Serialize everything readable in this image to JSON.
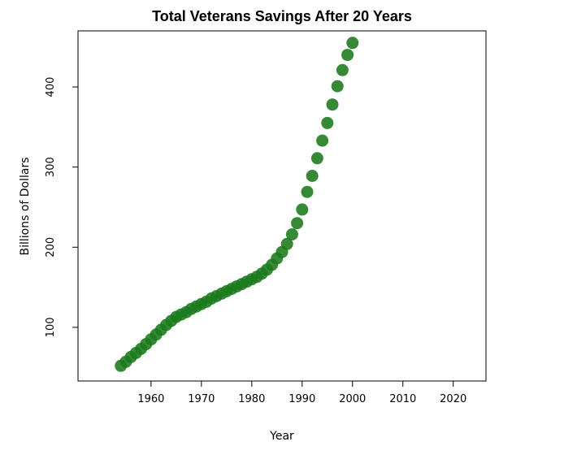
{
  "chart_data": {
    "type": "scatter",
    "title": "Total Veterans Savings After 20 Years",
    "xlabel": "Year",
    "ylabel": "Billions of Dollars",
    "xlim": [
      1945.5,
      2026.5
    ],
    "ylim": [
      33,
      470
    ],
    "xticks": [
      1960,
      1970,
      1980,
      1990,
      2000,
      2010,
      2020
    ],
    "yticks": [
      100,
      200,
      300,
      400
    ],
    "grid": false,
    "legend": "none",
    "marker_color": "#1a7a1a",
    "series": [
      {
        "x": [
          1954,
          1955,
          1956,
          1957,
          1958,
          1959,
          1960,
          1961,
          1962,
          1963,
          1964,
          1965,
          1966,
          1967,
          1968,
          1969,
          1970,
          1971,
          1972,
          1973,
          1974,
          1975,
          1976,
          1977,
          1978,
          1979,
          1980,
          1981,
          1982,
          1983,
          1984,
          1985,
          1986,
          1987,
          1988,
          1989,
          1990,
          1991,
          1992,
          1993,
          1994,
          1995,
          1996,
          1997,
          1998,
          1999,
          2000
        ],
        "y": [
          52,
          57,
          63,
          68,
          73,
          79,
          85,
          91,
          97,
          103,
          108,
          113,
          116,
          119,
          123,
          126,
          129,
          132,
          136,
          139,
          142,
          145,
          148,
          151,
          154,
          157,
          160,
          163,
          167,
          172,
          178,
          186,
          194,
          204,
          216,
          230,
          247,
          269,
          289,
          311,
          333,
          355,
          378,
          401,
          421,
          440,
          455
        ]
      }
    ]
  }
}
